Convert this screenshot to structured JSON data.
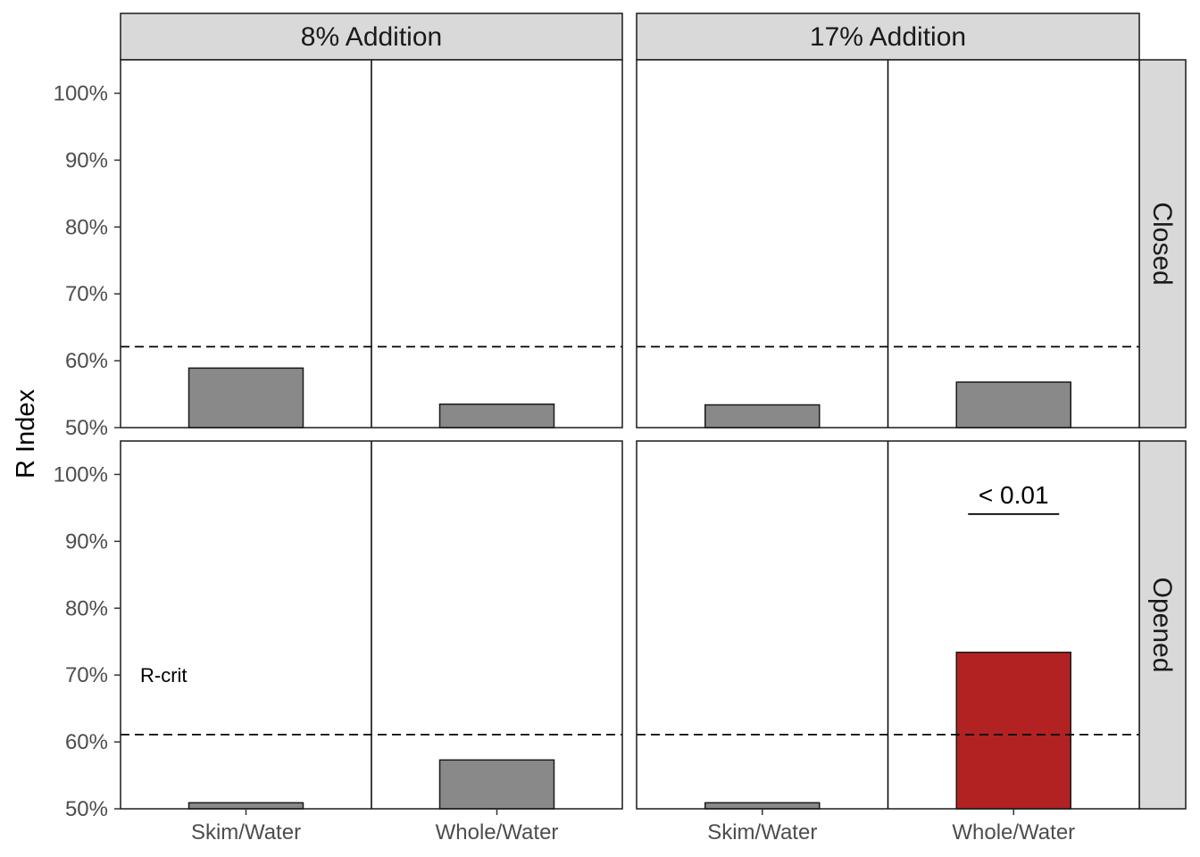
{
  "chart_data": {
    "type": "bar",
    "ylabel": "R Index",
    "ylim": [
      50,
      105
    ],
    "yticks": [
      50,
      60,
      70,
      80,
      90,
      100
    ],
    "ytick_labels": [
      "50%",
      "60%",
      "70%",
      "80%",
      "90%",
      "100%"
    ],
    "categories": [
      "Skim/Water",
      "Whole/Water"
    ],
    "col_facets": [
      "8% Addition",
      "17% Addition"
    ],
    "row_facets": [
      "Closed",
      "Opened"
    ],
    "grid": false,
    "colors": {
      "default": "#898989",
      "significant": "#B22222",
      "strip": "#d9d9d9",
      "outline": "#1a1a1a"
    },
    "panels": [
      {
        "col": "8% Addition",
        "row": "Closed",
        "values": [
          58.9,
          53.5
        ],
        "rcrit": 62.1,
        "significant": [
          false,
          false
        ]
      },
      {
        "col": "17% Addition",
        "row": "Closed",
        "values": [
          53.4,
          56.8
        ],
        "rcrit": 62.1,
        "significant": [
          false,
          false
        ]
      },
      {
        "col": "8% Addition",
        "row": "Opened",
        "values": [
          50.9,
          57.3
        ],
        "rcrit": 61.1,
        "significant": [
          false,
          false
        ],
        "rcrit_label": "R-crit",
        "rcrit_label_y": 70
      },
      {
        "col": "17% Addition",
        "row": "Opened",
        "values": [
          50.9,
          73.4
        ],
        "rcrit": 61.1,
        "significant": [
          false,
          true
        ],
        "pvalue_label": "< 0.01",
        "pvalue_y": 95
      }
    ]
  }
}
